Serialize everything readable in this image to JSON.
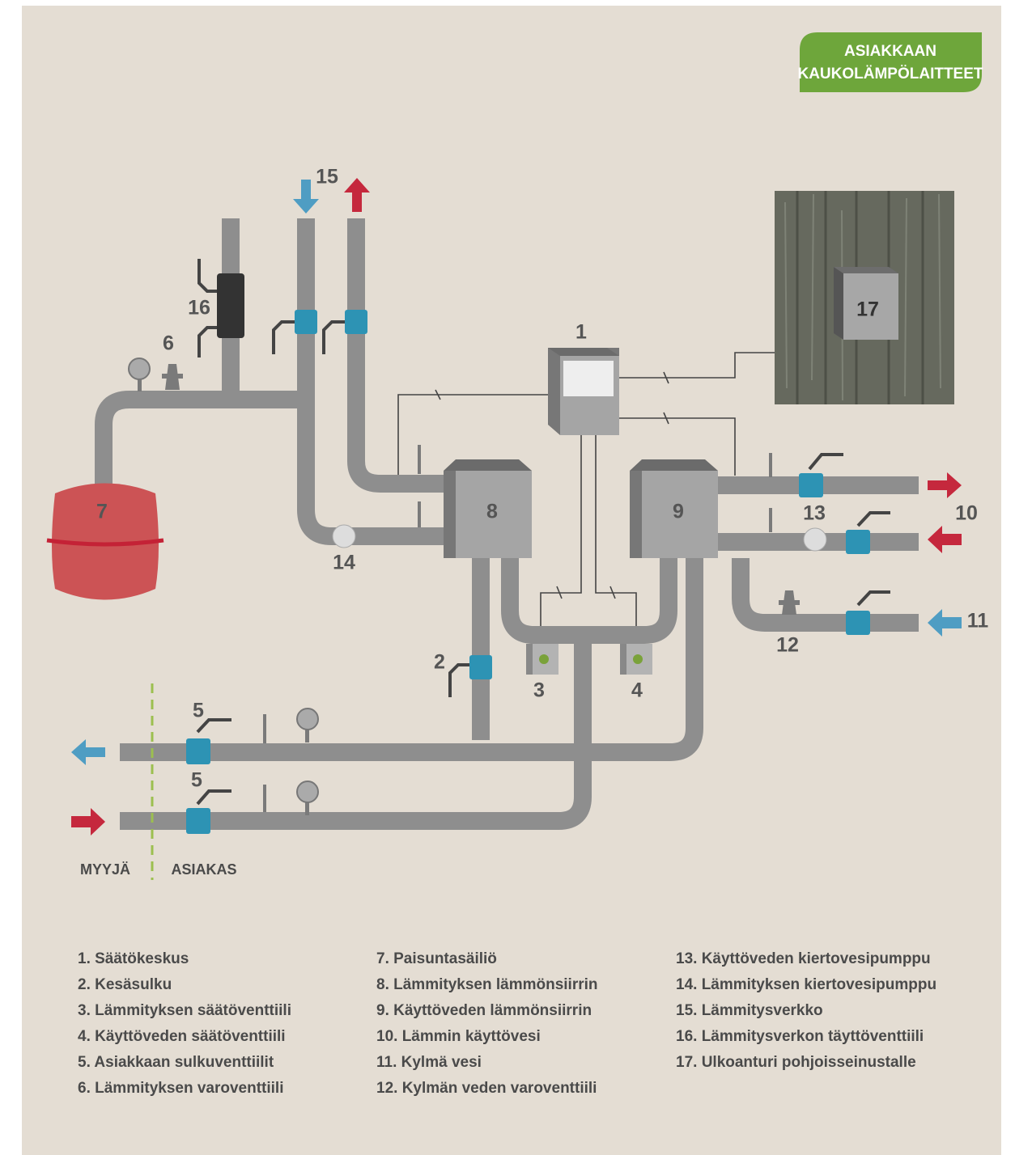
{
  "badge": {
    "lines": [
      "ASIAKKAAN",
      "KAUKOLÄMPÖLAITTEET"
    ]
  },
  "diagram_labels": [
    "15",
    "16",
    "6",
    "1",
    "17",
    "7",
    "8",
    "9",
    "13",
    "10",
    "14",
    "11",
    "12",
    "2",
    "3",
    "4",
    "5",
    "5"
  ],
  "sides": {
    "seller": "MYYJÄ",
    "customer": "ASIAKAS"
  },
  "legend": {
    "columns": [
      [
        "1. Säätökeskus",
        "2. Kesäsulku",
        "3. Lämmityksen säätöventtiili",
        "4. Käyttöveden säätöventtiili",
        "5. Asiakkaan sulkuventtiilit",
        "6. Lämmityksen varoventtiili"
      ],
      [
        "7. Paisuntasäiliö",
        "8. Lämmityksen lämmönsiirrin",
        "9. Käyttöveden lämmönsiirrin",
        "10. Lämmin käyttövesi",
        "11. Kylmä vesi",
        "12. Kylmän veden varoventtiili"
      ],
      [
        "13. Käyttöveden kiertovesipumppu",
        "14. Lämmityksen kiertovesipumppu",
        "15. Lämmitysverkko",
        "16. Lämmitysverkon täyttöventtiili",
        "17. Ulkoanturi pohjoisseinustalle"
      ]
    ]
  }
}
